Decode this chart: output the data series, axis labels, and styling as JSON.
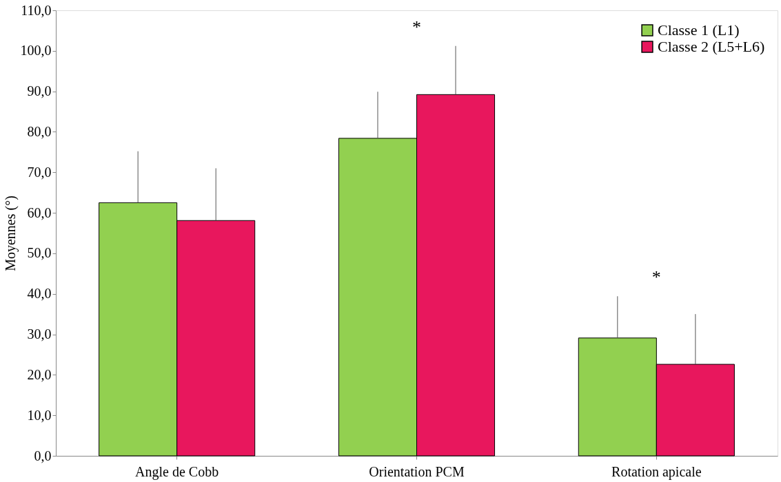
{
  "chart_data": {
    "type": "bar",
    "ylabel": "Moyennes (°)",
    "categories": [
      "Angle de Cobb",
      "Orientation PCM",
      "Rotation apicale"
    ],
    "series": [
      {
        "name": "Classe 1 (L1)",
        "color": "#92d050",
        "values": [
          62.5,
          78.4,
          29.1
        ],
        "errors": [
          [
            62.5,
            75.2
          ],
          [
            78.4,
            89.9
          ],
          [
            29.1,
            39.4
          ]
        ]
      },
      {
        "name": "Classe 2 (L5+L6)",
        "color": "#e8175d",
        "values": [
          58.1,
          89.2,
          22.6
        ],
        "errors": [
          [
            58.1,
            71.0
          ],
          [
            89.2,
            101.2
          ],
          [
            22.6,
            35.0
          ]
        ]
      }
    ],
    "ylim": [
      0,
      110
    ],
    "yticks": [
      {
        "value": 0,
        "label": "0,0"
      },
      {
        "value": 10,
        "label": "10,0"
      },
      {
        "value": 20,
        "label": "20,0"
      },
      {
        "value": 30,
        "label": "30,0"
      },
      {
        "value": 40,
        "label": "40,0"
      },
      {
        "value": 50,
        "label": "50,0"
      },
      {
        "value": 60,
        "label": "60,0"
      },
      {
        "value": 70,
        "label": "70,0"
      },
      {
        "value": 80,
        "label": "80,0"
      },
      {
        "value": 90,
        "label": "90,0"
      },
      {
        "value": 100,
        "label": "100,0"
      },
      {
        "value": 110,
        "label": "110,0"
      }
    ],
    "annotations": [
      "*",
      "*"
    ],
    "grid": false,
    "legend": "top right"
  }
}
